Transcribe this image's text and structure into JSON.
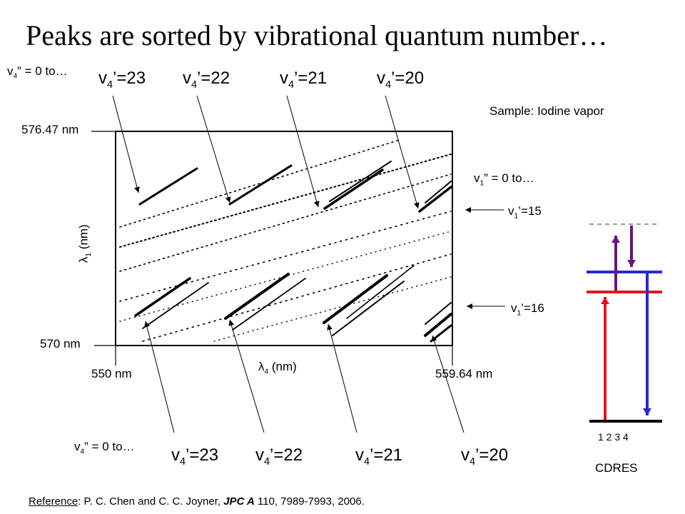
{
  "title": "Peaks are sorted by vibrational quantum number…",
  "top_left_note": {
    "pre": "v",
    "sub": "4",
    "post": "” = 0  to…"
  },
  "bottom_left_note": {
    "pre": "v",
    "sub": "4",
    "post": "” = 0  to…"
  },
  "right_note": {
    "pre": "v",
    "sub": "1",
    "post": "” = 0  to…"
  },
  "sample": "Sample: Iodine vapor",
  "y_top": "576.47 nm",
  "y_bottom": "570 nm",
  "x_left": "550 nm",
  "x_right": "559.64 nm",
  "y_axis_label": {
    "sym": "λ",
    "sub": "1",
    "unit": " (nm)"
  },
  "x_axis_label": {
    "sym": "λ",
    "sub": "4",
    "unit": " (nm)"
  },
  "top_labels": [
    {
      "pre": "v",
      "sub": "4",
      "post": "’=23"
    },
    {
      "pre": "v",
      "sub": "4",
      "post": "’=22"
    },
    {
      "pre": "v",
      "sub": "4",
      "post": "’=21"
    },
    {
      "pre": "v",
      "sub": "4",
      "post": "’=20"
    }
  ],
  "bottom_labels": [
    {
      "pre": "v",
      "sub": "4",
      "post": "’=23"
    },
    {
      "pre": "v",
      "sub": "4",
      "post": "’=22"
    },
    {
      "pre": "v",
      "sub": "4",
      "post": "’=21"
    },
    {
      "pre": "v",
      "sub": "4",
      "post": "’=20"
    }
  ],
  "v1_15": {
    "pre": "v",
    "sub": "1",
    "post": "’=15"
  },
  "v1_16": {
    "pre": "v",
    "sub": "1",
    "post": "’=16"
  },
  "cdres_numbers": "1  2  3  4",
  "cdres_label": "CDRES",
  "reference": {
    "label": "Reference",
    "pre": ": P. C. Chen and C. C. Joyner, ",
    "journal": "JPC A",
    "post": " 110, 7989-7993, 2006."
  },
  "colors": {
    "red": "#e8141b",
    "blue": "#2828d2",
    "purple": "#6a1480",
    "dark": "#000000"
  }
}
